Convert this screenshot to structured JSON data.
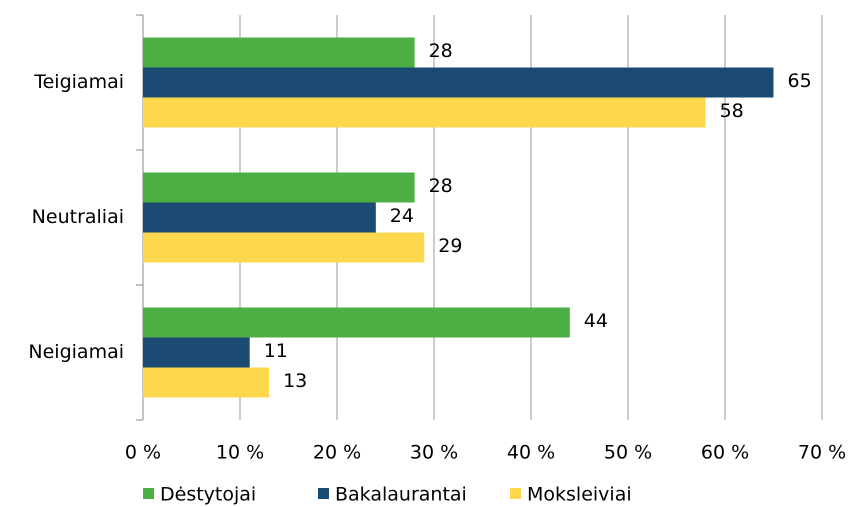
{
  "chart_data": {
    "type": "hbar",
    "categories": [
      "Teigiamai",
      "Neutraliai",
      "Neigiamai"
    ],
    "series": [
      {
        "name": "Dėstytojai",
        "color": "#4caf44",
        "values": [
          28,
          28,
          44
        ]
      },
      {
        "name": "Bakalaurantai",
        "color": "#1b4a72",
        "values": [
          65,
          24,
          11
        ]
      },
      {
        "name": "Moksleiviai",
        "color": "#fdd84f",
        "values": [
          58,
          29,
          13
        ]
      }
    ],
    "xlim": [
      0,
      70
    ],
    "xticks": [
      {
        "value": 0,
        "label": "0 %"
      },
      {
        "value": 10,
        "label": "10 %"
      },
      {
        "value": 20,
        "label": "20 %"
      },
      {
        "value": 30,
        "label": "30 %"
      },
      {
        "value": 40,
        "label": "40 %"
      },
      {
        "value": 50,
        "label": "50 %"
      },
      {
        "value": 60,
        "label": "60 %"
      },
      {
        "value": 70,
        "label": "70 %"
      }
    ],
    "grid": true,
    "legend": "bottom"
  }
}
